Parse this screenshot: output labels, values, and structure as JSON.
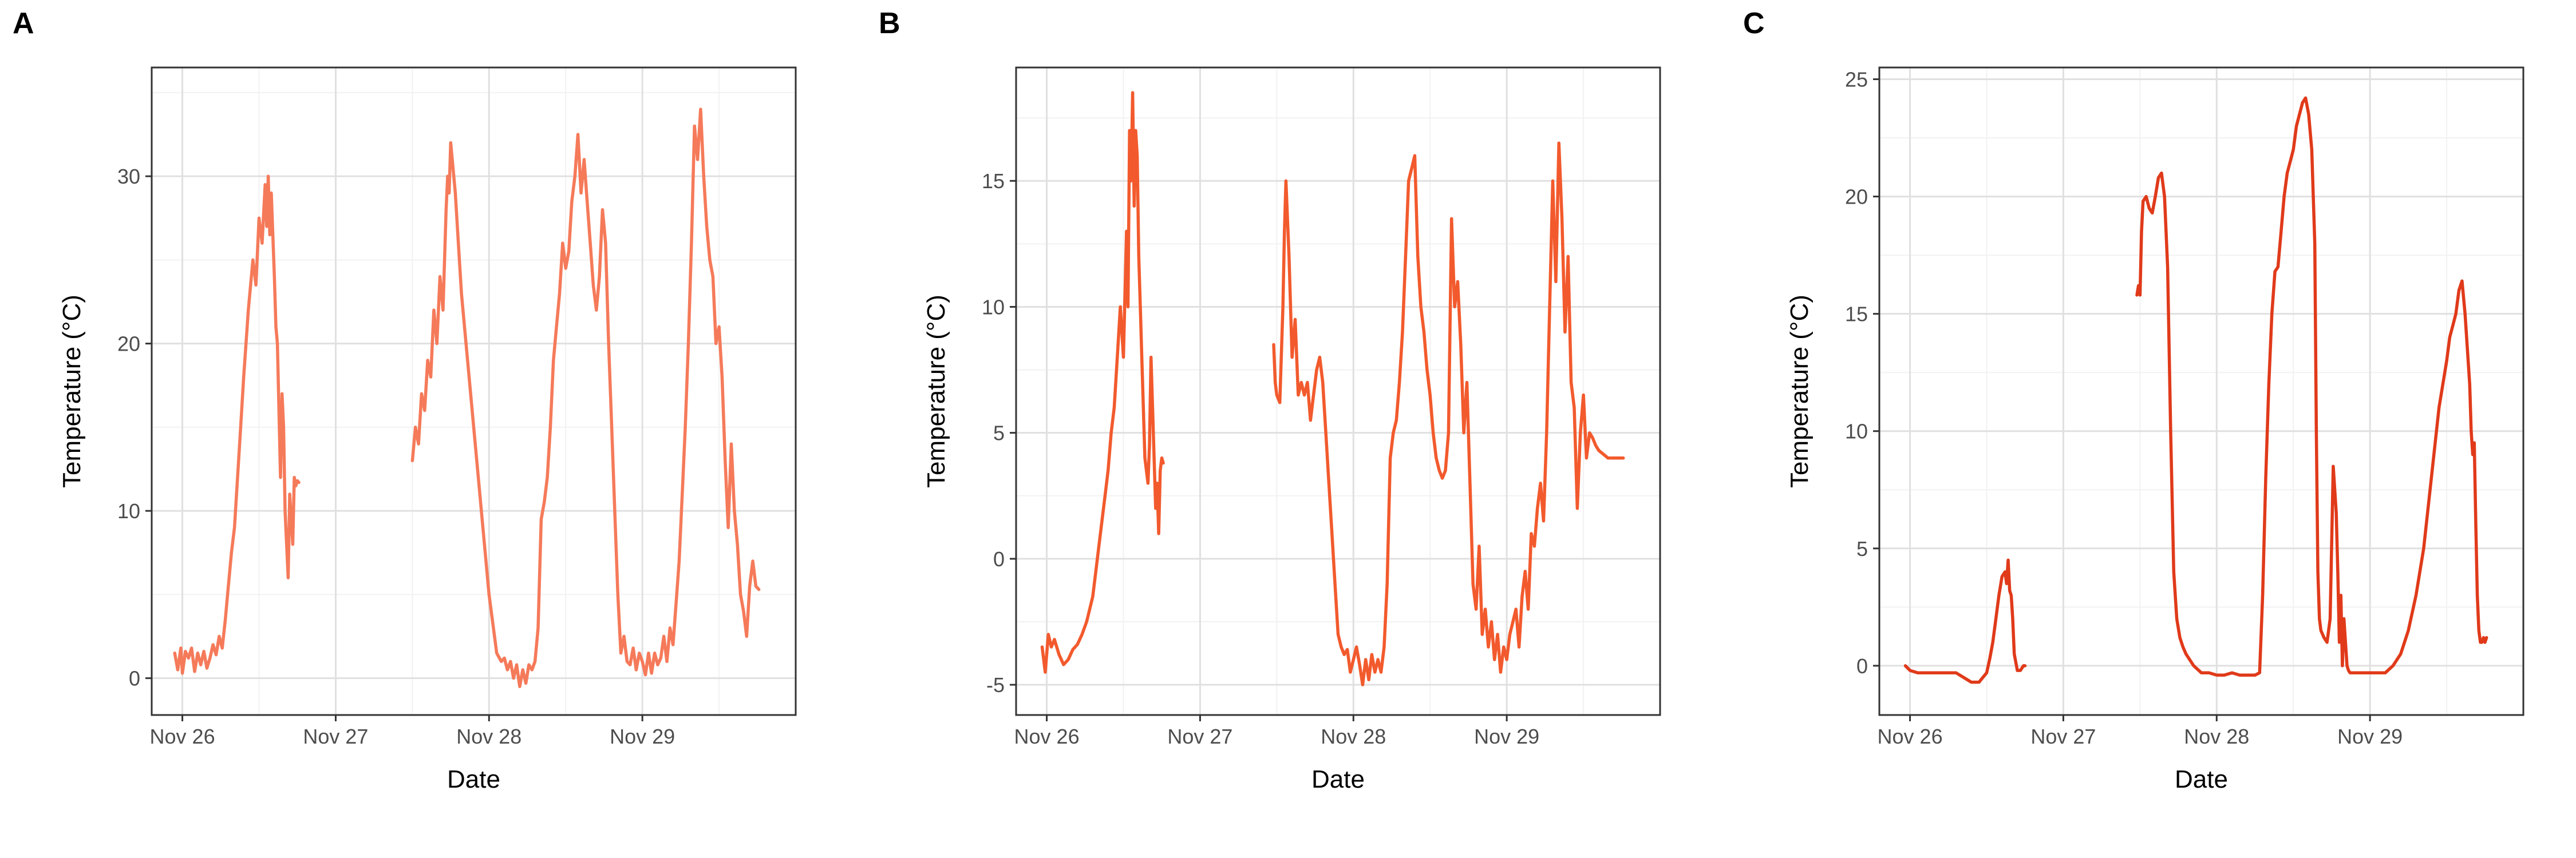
{
  "chart_data": [
    {
      "panel": "A",
      "type": "line",
      "xlabel": "Date",
      "ylabel": "Temperature (°C)",
      "xlim": [
        -0.2,
        4.0
      ],
      "ylim": [
        -2.2,
        36.5
      ],
      "xticks": [
        0,
        1,
        2,
        3
      ],
      "xticklabels": [
        "Nov 26",
        "Nov 27",
        "Nov 28",
        "Nov 29"
      ],
      "yticks": [
        0,
        10,
        20,
        30
      ],
      "yticklabels": [
        "0",
        "10",
        "20",
        "30"
      ],
      "grid": true,
      "color": "#F57A5A",
      "series": [
        {
          "x": [
            -0.05,
            -0.03,
            -0.01,
            0.0,
            0.02,
            0.04,
            0.06,
            0.08,
            0.1,
            0.12,
            0.14,
            0.16,
            0.18,
            0.2,
            0.22,
            0.24,
            0.26,
            0.28,
            0.3,
            0.32,
            0.34,
            0.36,
            0.38,
            0.4,
            0.43,
            0.46,
            0.48,
            0.5,
            0.52,
            0.54,
            0.55,
            0.56,
            0.57,
            0.58,
            0.6,
            0.61,
            0.62,
            0.63,
            0.64,
            0.65,
            0.66,
            0.67,
            0.68,
            0.69,
            0.7,
            0.71,
            0.72,
            0.73,
            0.74,
            0.75,
            0.76
          ],
          "y": [
            1.5,
            0.5,
            1.8,
            0.3,
            1.6,
            1.2,
            1.8,
            0.4,
            1.5,
            0.8,
            1.6,
            0.6,
            1.2,
            2.0,
            1.4,
            2.5,
            1.8,
            3.5,
            5.5,
            7.5,
            9.0,
            12.0,
            15.0,
            18.0,
            22.0,
            25.0,
            23.5,
            27.5,
            26.0,
            29.5,
            27.0,
            30.0,
            26.5,
            29.0,
            24.0,
            21.0,
            20.0,
            16.0,
            12.0,
            17.0,
            15.0,
            10.0,
            8.0,
            6.0,
            11.0,
            9.5,
            8.0,
            12.0,
            11.5,
            11.8,
            11.7
          ]
        },
        {
          "x": [
            1.5,
            1.52,
            1.54,
            1.56,
            1.58,
            1.6,
            1.62,
            1.64,
            1.66,
            1.68,
            1.7,
            1.72,
            1.73,
            1.74,
            1.75,
            1.76,
            1.78,
            1.8,
            1.82,
            1.85,
            1.9,
            1.95,
            2.0,
            2.05,
            2.08,
            2.1,
            2.12,
            2.14,
            2.16,
            2.18,
            2.2,
            2.22,
            2.24,
            2.26,
            2.28,
            2.3,
            2.32,
            2.34,
            2.36,
            2.38,
            2.4,
            2.42,
            2.44,
            2.46,
            2.48,
            2.5,
            2.52,
            2.54,
            2.56,
            2.58,
            2.6,
            2.62,
            2.64,
            2.66,
            2.68,
            2.7,
            2.72,
            2.74,
            2.76,
            2.78,
            2.8,
            2.82,
            2.84,
            2.86,
            2.88,
            2.9,
            2.92,
            2.94,
            2.96,
            2.98,
            3.0,
            3.02,
            3.04,
            3.06,
            3.08,
            3.1,
            3.12,
            3.14,
            3.16,
            3.18,
            3.2,
            3.22,
            3.24,
            3.26,
            3.28,
            3.3,
            3.32,
            3.34,
            3.36,
            3.38,
            3.4,
            3.42,
            3.44,
            3.46,
            3.48,
            3.5,
            3.52,
            3.54,
            3.56,
            3.58,
            3.6,
            3.62,
            3.64,
            3.66,
            3.68,
            3.7,
            3.72,
            3.74,
            3.76
          ],
          "y": [
            13.0,
            15.0,
            14.0,
            17.0,
            16.0,
            19.0,
            18.0,
            22.0,
            20.0,
            24.0,
            22.0,
            28.0,
            30.0,
            29.0,
            32.0,
            31.0,
            29.0,
            26.0,
            23.0,
            20.0,
            15.0,
            10.0,
            5.0,
            1.5,
            1.0,
            1.2,
            0.5,
            1.0,
            0.0,
            0.8,
            -0.5,
            0.5,
            -0.3,
            0.8,
            0.5,
            1.0,
            3.0,
            9.5,
            10.5,
            12.0,
            15.0,
            19.0,
            21.0,
            23.0,
            26.0,
            24.5,
            25.5,
            28.5,
            30.0,
            32.5,
            29.0,
            31.0,
            28.5,
            26.0,
            23.5,
            22.0,
            24.0,
            28.0,
            26.0,
            20.0,
            15.0,
            10.0,
            5.0,
            1.5,
            2.5,
            1.0,
            0.8,
            1.8,
            0.5,
            1.5,
            1.0,
            0.2,
            1.5,
            0.3,
            1.5,
            0.8,
            1.2,
            2.5,
            1.0,
            3.0,
            2.0,
            4.5,
            7.0,
            11.0,
            15.0,
            20.0,
            26.0,
            33.0,
            31.0,
            34.0,
            30.0,
            27.0,
            25.0,
            24.0,
            20.0,
            21.0,
            18.0,
            13.0,
            9.0,
            14.0,
            10.0,
            8.0,
            5.0,
            4.0,
            2.5,
            5.5,
            7.0,
            5.5,
            5.3
          ]
        }
      ]
    },
    {
      "panel": "B",
      "type": "line",
      "xlabel": "Date",
      "ylabel": "Temperature (°C)",
      "xlim": [
        -0.2,
        4.0
      ],
      "ylim": [
        -6.2,
        19.5
      ],
      "xticks": [
        0,
        1,
        2,
        3
      ],
      "xticklabels": [
        "Nov 26",
        "Nov 27",
        "Nov 28",
        "Nov 29"
      ],
      "yticks": [
        -5,
        0,
        5,
        10,
        15
      ],
      "yticklabels": [
        "-5",
        "0",
        "5",
        "10",
        "15"
      ],
      "grid": true,
      "color": "#F25A2D",
      "series": [
        {
          "x": [
            -0.03,
            -0.01,
            0.01,
            0.03,
            0.05,
            0.08,
            0.11,
            0.14,
            0.17,
            0.2,
            0.23,
            0.26,
            0.28,
            0.3,
            0.32,
            0.34,
            0.36,
            0.38,
            0.4,
            0.42,
            0.44,
            0.46,
            0.48,
            0.5,
            0.52,
            0.53,
            0.54,
            0.55,
            0.56,
            0.57,
            0.58,
            0.59,
            0.6,
            0.61,
            0.62,
            0.63,
            0.64,
            0.65,
            0.66,
            0.67,
            0.68,
            0.69,
            0.7,
            0.71,
            0.72,
            0.73,
            0.74,
            0.75,
            0.76
          ],
          "y": [
            -3.5,
            -4.5,
            -3.0,
            -3.5,
            -3.2,
            -3.8,
            -4.2,
            -4.0,
            -3.6,
            -3.4,
            -3.0,
            -2.5,
            -2.0,
            -1.5,
            -0.5,
            0.5,
            1.5,
            2.5,
            3.5,
            5.0,
            6.0,
            8.0,
            10.0,
            8.0,
            13.0,
            10.0,
            17.0,
            15.0,
            18.5,
            14.0,
            17.0,
            16.0,
            12.0,
            10.0,
            8.0,
            6.0,
            4.0,
            3.5,
            3.0,
            4.5,
            8.0,
            6.0,
            4.0,
            2.0,
            3.0,
            1.0,
            3.5,
            4.0,
            3.8
          ]
        },
        {
          "x": [
            1.48,
            1.49,
            1.5,
            1.52,
            1.54,
            1.55,
            1.56,
            1.58,
            1.6,
            1.62,
            1.64,
            1.66,
            1.68,
            1.7,
            1.72,
            1.74,
            1.76,
            1.78,
            1.8,
            1.82,
            1.84,
            1.86,
            1.88,
            1.9,
            1.92,
            1.94,
            1.96,
            1.98,
            2.0,
            2.02,
            2.04,
            2.06,
            2.08,
            2.1,
            2.12,
            2.14,
            2.16,
            2.18,
            2.2,
            2.22,
            2.24,
            2.26,
            2.28,
            2.3,
            2.32,
            2.34,
            2.36,
            2.38,
            2.4,
            2.42,
            2.44,
            2.46,
            2.48,
            2.5,
            2.52,
            2.54,
            2.56,
            2.58,
            2.6,
            2.62,
            2.64,
            2.66,
            2.68,
            2.7,
            2.72,
            2.74,
            2.76,
            2.78,
            2.8,
            2.82,
            2.84,
            2.86,
            2.88,
            2.9,
            2.92,
            2.94,
            2.96,
            2.98,
            3.0,
            3.02,
            3.04,
            3.06,
            3.08,
            3.1,
            3.12,
            3.14,
            3.16,
            3.18,
            3.2,
            3.22,
            3.24,
            3.26,
            3.28,
            3.3,
            3.32,
            3.34,
            3.36,
            3.38,
            3.4,
            3.42,
            3.44,
            3.46,
            3.48,
            3.5,
            3.52,
            3.54,
            3.56,
            3.58,
            3.6,
            3.62,
            3.64,
            3.66,
            3.68,
            3.7,
            3.72,
            3.74,
            3.76
          ],
          "y": [
            8.5,
            7.0,
            6.5,
            6.2,
            10.0,
            13.0,
            15.0,
            12.0,
            8.0,
            9.5,
            6.5,
            7.0,
            6.5,
            7.0,
            5.5,
            6.5,
            7.5,
            8.0,
            7.0,
            5.0,
            3.0,
            1.0,
            -1.0,
            -3.0,
            -3.5,
            -3.8,
            -3.6,
            -4.5,
            -4.0,
            -3.5,
            -4.2,
            -5.0,
            -4.0,
            -4.8,
            -3.8,
            -4.5,
            -4.0,
            -4.5,
            -3.5,
            -1.0,
            4.0,
            5.0,
            5.5,
            7.0,
            9.0,
            12.0,
            15.0,
            15.5,
            16.0,
            12.0,
            10.0,
            9.0,
            7.5,
            6.5,
            5.0,
            4.0,
            3.5,
            3.2,
            3.5,
            5.0,
            13.5,
            10.0,
            11.0,
            8.5,
            5.0,
            7.0,
            3.0,
            -1.0,
            -2.0,
            0.5,
            -3.0,
            -2.0,
            -3.5,
            -2.5,
            -4.0,
            -3.0,
            -4.5,
            -3.5,
            -4.0,
            -3.0,
            -2.5,
            -2.0,
            -3.5,
            -1.5,
            -0.5,
            -2.0,
            1.0,
            0.5,
            2.0,
            3.0,
            1.5,
            5.0,
            10.0,
            15.0,
            11.0,
            16.5,
            13.5,
            9.0,
            12.0,
            7.0,
            6.0,
            2.0,
            5.0,
            6.5,
            4.0,
            5.0,
            4.8,
            4.5,
            4.3,
            4.2,
            4.1,
            4.0,
            4.0,
            4.0,
            4.0,
            4.0,
            4.0
          ]
        }
      ]
    },
    {
      "panel": "C",
      "type": "line",
      "xlabel": "Date",
      "ylabel": "Temperature (°C)",
      "xlim": [
        -0.2,
        4.0
      ],
      "ylim": [
        -2.1,
        25.5
      ],
      "xticks": [
        0,
        1,
        2,
        3
      ],
      "xticklabels": [
        "Nov 26",
        "Nov 27",
        "Nov 28",
        "Nov 29"
      ],
      "yticks": [
        0,
        5,
        10,
        15,
        20,
        25
      ],
      "yticklabels": [
        "0",
        "5",
        "10",
        "15",
        "20",
        "25"
      ],
      "grid": true,
      "color": "#E03A1A",
      "series": [
        {
          "x": [
            -0.03,
            0.0,
            0.05,
            0.1,
            0.15,
            0.2,
            0.25,
            0.3,
            0.35,
            0.4,
            0.45,
            0.5,
            0.52,
            0.54,
            0.56,
            0.58,
            0.6,
            0.62,
            0.63,
            0.64,
            0.65,
            0.66,
            0.67,
            0.68,
            0.7,
            0.72,
            0.74,
            0.75
          ],
          "y": [
            0.0,
            -0.2,
            -0.3,
            -0.3,
            -0.3,
            -0.3,
            -0.3,
            -0.3,
            -0.5,
            -0.7,
            -0.7,
            -0.3,
            0.3,
            1.0,
            2.0,
            3.0,
            3.8,
            4.0,
            3.5,
            4.5,
            3.2,
            3.0,
            2.0,
            0.5,
            -0.2,
            -0.2,
            0.0,
            0.0
          ]
        },
        {
          "x": [
            1.48,
            1.49,
            1.5,
            1.51,
            1.52,
            1.54,
            1.56,
            1.58,
            1.6,
            1.62,
            1.64,
            1.66,
            1.68,
            1.7,
            1.72,
            1.74,
            1.76,
            1.78,
            1.8,
            1.85,
            1.9,
            1.95,
            2.0,
            2.05,
            2.1,
            2.15,
            2.2,
            2.25,
            2.28,
            2.3,
            2.32,
            2.34,
            2.36,
            2.38,
            2.4,
            2.42,
            2.44,
            2.46,
            2.48,
            2.5,
            2.52,
            2.54,
            2.56,
            2.58,
            2.6,
            2.62,
            2.64,
            2.65,
            2.66,
            2.67,
            2.68,
            2.7,
            2.72,
            2.74,
            2.76,
            2.78,
            2.79,
            2.8,
            2.81,
            2.82,
            2.83,
            2.84,
            2.85,
            2.86,
            2.87,
            2.88,
            2.89,
            2.9,
            2.92,
            2.95,
            3.0,
            3.05,
            3.1,
            3.15,
            3.2,
            3.25,
            3.3,
            3.35,
            3.4,
            3.45,
            3.5,
            3.52,
            3.54,
            3.56,
            3.58,
            3.6,
            3.62,
            3.64,
            3.65,
            3.66,
            3.67,
            3.68,
            3.69,
            3.7,
            3.71,
            3.72,
            3.73,
            3.74,
            3.75,
            3.76
          ],
          "y": [
            15.8,
            16.2,
            15.8,
            18.5,
            19.8,
            20.0,
            19.5,
            19.3,
            20.0,
            20.8,
            21.0,
            20.0,
            17.0,
            10.0,
            4.0,
            2.0,
            1.2,
            0.8,
            0.5,
            0.0,
            -0.3,
            -0.3,
            -0.4,
            -0.4,
            -0.3,
            -0.4,
            -0.4,
            -0.4,
            -0.3,
            3.0,
            8.0,
            12.0,
            15.0,
            16.8,
            17.0,
            18.5,
            20.0,
            21.0,
            21.5,
            22.0,
            23.0,
            23.5,
            24.0,
            24.2,
            23.5,
            22.0,
            18.0,
            10.0,
            4.0,
            2.0,
            1.5,
            1.2,
            1.0,
            2.0,
            8.5,
            6.5,
            4.0,
            1.0,
            3.0,
            0.0,
            2.0,
            1.0,
            0.0,
            -0.2,
            -0.3,
            -0.3,
            -0.3,
            -0.3,
            -0.3,
            -0.3,
            -0.3,
            -0.3,
            -0.3,
            0.0,
            0.5,
            1.5,
            3.0,
            5.0,
            8.0,
            11.0,
            13.0,
            14.0,
            14.5,
            15.0,
            16.0,
            16.4,
            15.0,
            13.0,
            12.0,
            10.0,
            9.0,
            9.5,
            6.0,
            3.0,
            1.5,
            1.0,
            1.0,
            1.2,
            1.0,
            1.2
          ]
        }
      ]
    }
  ]
}
